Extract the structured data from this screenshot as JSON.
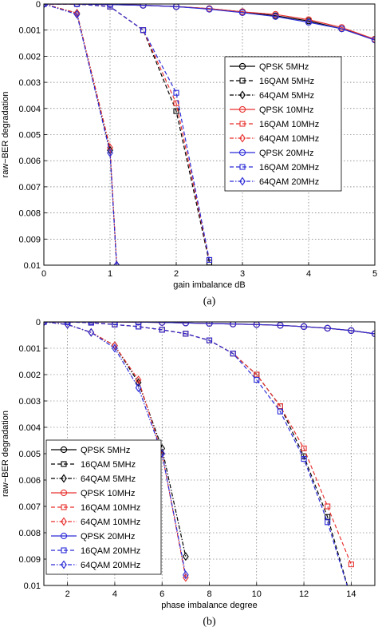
{
  "colors": {
    "black": "#000000",
    "red": "#e8322f",
    "blue": "#2b2bd8"
  },
  "chart_data": [
    {
      "type": "line",
      "panel_label": "(a)",
      "xlabel": "gain imbalance dB",
      "ylabel": "raw−BER degradation",
      "xlim": [
        0,
        5
      ],
      "ylim": [
        0,
        0.01
      ],
      "y_reversed": true,
      "grid": true,
      "xticks": [
        "0",
        "1",
        "2",
        "3",
        "4",
        "5"
      ],
      "yticks": [
        "0",
        "0.001",
        "0.002",
        "0.003",
        "0.004",
        "0.005",
        "0.006",
        "0.007",
        "0.008",
        "0.009",
        "0.01"
      ],
      "legend_position": "right",
      "series": [
        {
          "name": "QPSK 5MHz",
          "color": "black",
          "dash": "solid",
          "marker": "circle",
          "x": [
            0,
            0.5,
            1,
            1.5,
            2,
            2.5,
            3,
            3.5,
            4,
            4.5,
            5
          ],
          "y": [
            0,
            0,
            2e-05,
            5e-05,
            0.0001,
            0.00018,
            0.0003,
            0.00045,
            0.00065,
            0.00095,
            0.00135
          ]
        },
        {
          "name": "16QAM 5MHz",
          "color": "black",
          "dash": "dashed",
          "marker": "square",
          "x": [
            0,
            0.5,
            1,
            1.5,
            2,
            2.5
          ],
          "y": [
            0,
            0,
            0.0001,
            0.001,
            0.0041,
            0.0099
          ]
        },
        {
          "name": "64QAM 5MHz",
          "color": "black",
          "dash": "dashdot",
          "marker": "diamond",
          "x": [
            0,
            0.5,
            1,
            1.1
          ],
          "y": [
            0,
            0.00035,
            0.0056,
            0.01
          ]
        },
        {
          "name": "QPSK 10MHz",
          "color": "red",
          "dash": "solid",
          "marker": "circle",
          "x": [
            0,
            0.5,
            1,
            1.5,
            2,
            2.5,
            3,
            3.5,
            4,
            4.5,
            5
          ],
          "y": [
            0,
            0,
            2e-05,
            5e-05,
            0.0001,
            0.00018,
            0.0003,
            0.0004,
            0.0006,
            0.0009,
            0.00135
          ]
        },
        {
          "name": "16QAM 10MHz",
          "color": "red",
          "dash": "dashed",
          "marker": "square",
          "x": [
            0,
            0.5,
            1,
            1.5,
            2,
            2.5
          ],
          "y": [
            0,
            0,
            0.0001,
            0.001,
            0.0038,
            0.0098
          ]
        },
        {
          "name": "64QAM 10MHz",
          "color": "red",
          "dash": "dashdot",
          "marker": "diamond",
          "x": [
            0,
            0.5,
            1,
            1.1
          ],
          "y": [
            0,
            0.00035,
            0.0055,
            0.01
          ]
        },
        {
          "name": "QPSK 20MHz",
          "color": "blue",
          "dash": "solid",
          "marker": "circle",
          "x": [
            0,
            0.5,
            1,
            1.5,
            2,
            2.5,
            3,
            3.5,
            4,
            4.5,
            5
          ],
          "y": [
            0,
            0,
            2e-05,
            5e-05,
            0.0001,
            0.0002,
            0.00033,
            0.00048,
            0.0007,
            0.00095,
            0.00138
          ]
        },
        {
          "name": "16QAM 20MHz",
          "color": "blue",
          "dash": "dashed",
          "marker": "square",
          "x": [
            0,
            0.5,
            1,
            1.5,
            2,
            2.5
          ],
          "y": [
            0,
            0,
            0.0001,
            0.001,
            0.0034,
            0.0098
          ]
        },
        {
          "name": "64QAM 20MHz",
          "color": "blue",
          "dash": "dashdot",
          "marker": "diamond",
          "x": [
            0,
            0.5,
            1,
            1.1
          ],
          "y": [
            0,
            0.0004,
            0.0057,
            0.01
          ]
        }
      ]
    },
    {
      "type": "line",
      "panel_label": "(b)",
      "xlabel": "phase imbalance degree",
      "ylabel": "raw−BER degradation",
      "xlim": [
        1,
        15
      ],
      "ylim": [
        0,
        0.01
      ],
      "y_reversed": true,
      "grid": true,
      "xticks": [
        "2",
        "4",
        "6",
        "8",
        "10",
        "12",
        "14"
      ],
      "yticks": [
        "0",
        "0.001",
        "0.002",
        "0.003",
        "0.004",
        "0.005",
        "0.006",
        "0.007",
        "0.008",
        "0.009",
        "0.01"
      ],
      "legend_position": "bottom-left",
      "series": [
        {
          "name": "QPSK 5MHz",
          "color": "black",
          "dash": "solid",
          "marker": "circle",
          "x": [
            1,
            2,
            3,
            4,
            5,
            6,
            7,
            8,
            9,
            10,
            11,
            12,
            13,
            14,
            15
          ],
          "y": [
            0,
            0,
            0,
            0,
            1e-05,
            2e-05,
            4e-05,
            6e-05,
            8e-05,
            0.0001,
            0.00013,
            0.00018,
            0.00024,
            0.00033,
            0.00045
          ]
        },
        {
          "name": "16QAM 5MHz",
          "color": "black",
          "dash": "dashed",
          "marker": "square",
          "x": [
            1,
            2,
            3,
            4,
            5,
            6,
            7,
            8,
            9,
            10,
            11,
            12,
            13,
            14
          ],
          "y": [
            0,
            0,
            3e-05,
            0.0001,
            0.00018,
            0.0003,
            0.00045,
            0.0007,
            0.0012,
            0.002,
            0.0032,
            0.0051,
            0.0074,
            0.0105
          ]
        },
        {
          "name": "64QAM 5MHz",
          "color": "black",
          "dash": "dashdot",
          "marker": "diamond",
          "x": [
            1,
            2,
            3,
            4,
            5,
            6,
            7
          ],
          "y": [
            0,
            0.0001,
            0.0004,
            0.0009,
            0.0023,
            0.0048,
            0.0089
          ]
        },
        {
          "name": "QPSK 10MHz",
          "color": "red",
          "dash": "solid",
          "marker": "circle",
          "x": [
            1,
            2,
            3,
            4,
            5,
            6,
            7,
            8,
            9,
            10,
            11,
            12,
            13,
            14,
            15
          ],
          "y": [
            0,
            0,
            0,
            0,
            1e-05,
            2e-05,
            4e-05,
            6e-05,
            8e-05,
            0.0001,
            0.00013,
            0.00018,
            0.00024,
            0.00033,
            0.00045
          ]
        },
        {
          "name": "16QAM 10MHz",
          "color": "red",
          "dash": "dashed",
          "marker": "square",
          "x": [
            1,
            2,
            3,
            4,
            5,
            6,
            7,
            8,
            9,
            10,
            11,
            12,
            13,
            14
          ],
          "y": [
            0,
            0,
            3e-05,
            0.0001,
            0.00018,
            0.0003,
            0.00045,
            0.0007,
            0.0012,
            0.002,
            0.0032,
            0.0048,
            0.007,
            0.0092
          ]
        },
        {
          "name": "64QAM 10MHz",
          "color": "red",
          "dash": "dashdot",
          "marker": "diamond",
          "x": [
            1,
            2,
            3,
            4,
            5,
            6,
            7
          ],
          "y": [
            0,
            0.0001,
            0.0004,
            0.0009,
            0.0022,
            0.005,
            0.0097
          ]
        },
        {
          "name": "QPSK 20MHz",
          "color": "blue",
          "dash": "solid",
          "marker": "circle",
          "x": [
            1,
            2,
            3,
            4,
            5,
            6,
            7,
            8,
            9,
            10,
            11,
            12,
            13,
            14,
            15
          ],
          "y": [
            0,
            0,
            0,
            0,
            1e-05,
            2e-05,
            4e-05,
            6e-05,
            8e-05,
            0.0001,
            0.00013,
            0.00018,
            0.00024,
            0.00033,
            0.00045
          ]
        },
        {
          "name": "16QAM 20MHz",
          "color": "blue",
          "dash": "dashed",
          "marker": "square",
          "x": [
            1,
            2,
            3,
            4,
            5,
            6,
            7,
            8,
            9,
            10,
            11,
            12,
            13,
            14
          ],
          "y": [
            0,
            0,
            3e-05,
            0.0001,
            0.00018,
            0.0003,
            0.00045,
            0.0007,
            0.0012,
            0.0022,
            0.0034,
            0.0052,
            0.0076,
            0.0105
          ]
        },
        {
          "name": "64QAM 20MHz",
          "color": "blue",
          "dash": "dashdot",
          "marker": "diamond",
          "x": [
            1,
            2,
            3,
            4,
            5,
            6,
            7
          ],
          "y": [
            0,
            0.0001,
            0.0004,
            0.001,
            0.0025,
            0.005,
            0.0096
          ]
        }
      ]
    }
  ]
}
